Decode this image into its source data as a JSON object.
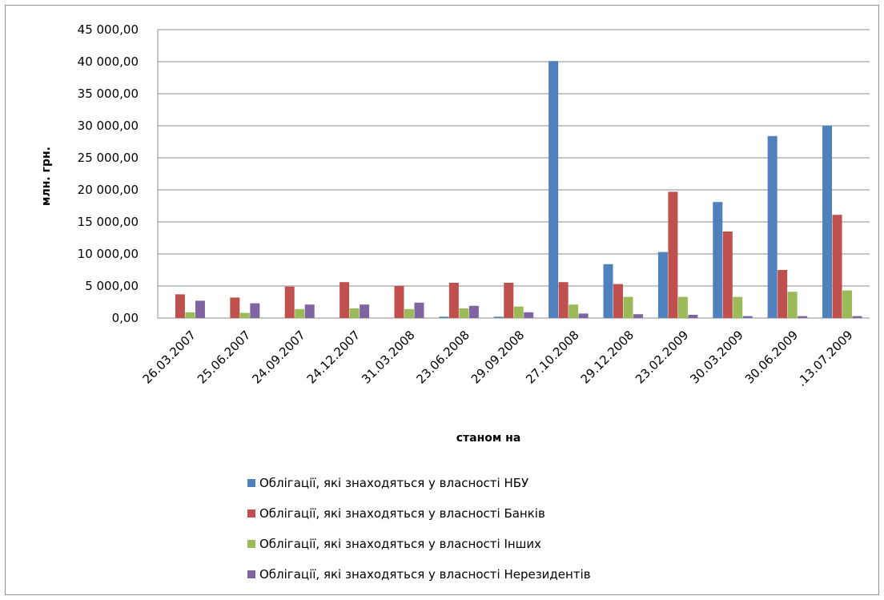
{
  "chart_data": {
    "type": "bar",
    "title": "",
    "xlabel": "станом на",
    "ylabel": "млн. грн.",
    "ylim": [
      0,
      45000
    ],
    "yticks": [
      "0,00",
      "5 000,00",
      "10 000,00",
      "15 000,00",
      "20 000,00",
      "25 000,00",
      "30 000,00",
      "35 000,00",
      "40 000,00",
      "45 000,00"
    ],
    "grid": true,
    "legend_position": "bottom",
    "categories": [
      "26.03.2007",
      "25.06.2007",
      "24.09.2007",
      "24.12.2007",
      "31.03.2008",
      "23.06.2008",
      "29.09.2008",
      "27.10.2008",
      "29.12.2008",
      "23.02.2009",
      "30.03.2009",
      "30.06.2009",
      ".13.07.2009"
    ],
    "series": [
      {
        "name": "Облігації, які знаходяться у власності НБУ",
        "color": "#4f81bd",
        "values": [
          0,
          0,
          0,
          0,
          0,
          200,
          200,
          40100,
          8400,
          10300,
          18100,
          28400,
          30000
        ]
      },
      {
        "name": "Облігації, які знаходяться у власності Банків",
        "color": "#c0504d",
        "values": [
          3700,
          3200,
          4900,
          5600,
          5000,
          5500,
          5500,
          5600,
          5300,
          19700,
          13500,
          7500,
          16100
        ]
      },
      {
        "name": "Облігації, які знаходяться у власності Інших",
        "color": "#9bbb59",
        "values": [
          900,
          800,
          1400,
          1500,
          1400,
          1500,
          1800,
          2100,
          3300,
          3300,
          3300,
          4100,
          4300
        ]
      },
      {
        "name": "Облігації, які знаходяться у власності Нерезидентів",
        "color": "#8064a2",
        "values": [
          2700,
          2300,
          2100,
          2100,
          2400,
          1900,
          900,
          700,
          600,
          500,
          300,
          300,
          300
        ]
      }
    ]
  }
}
